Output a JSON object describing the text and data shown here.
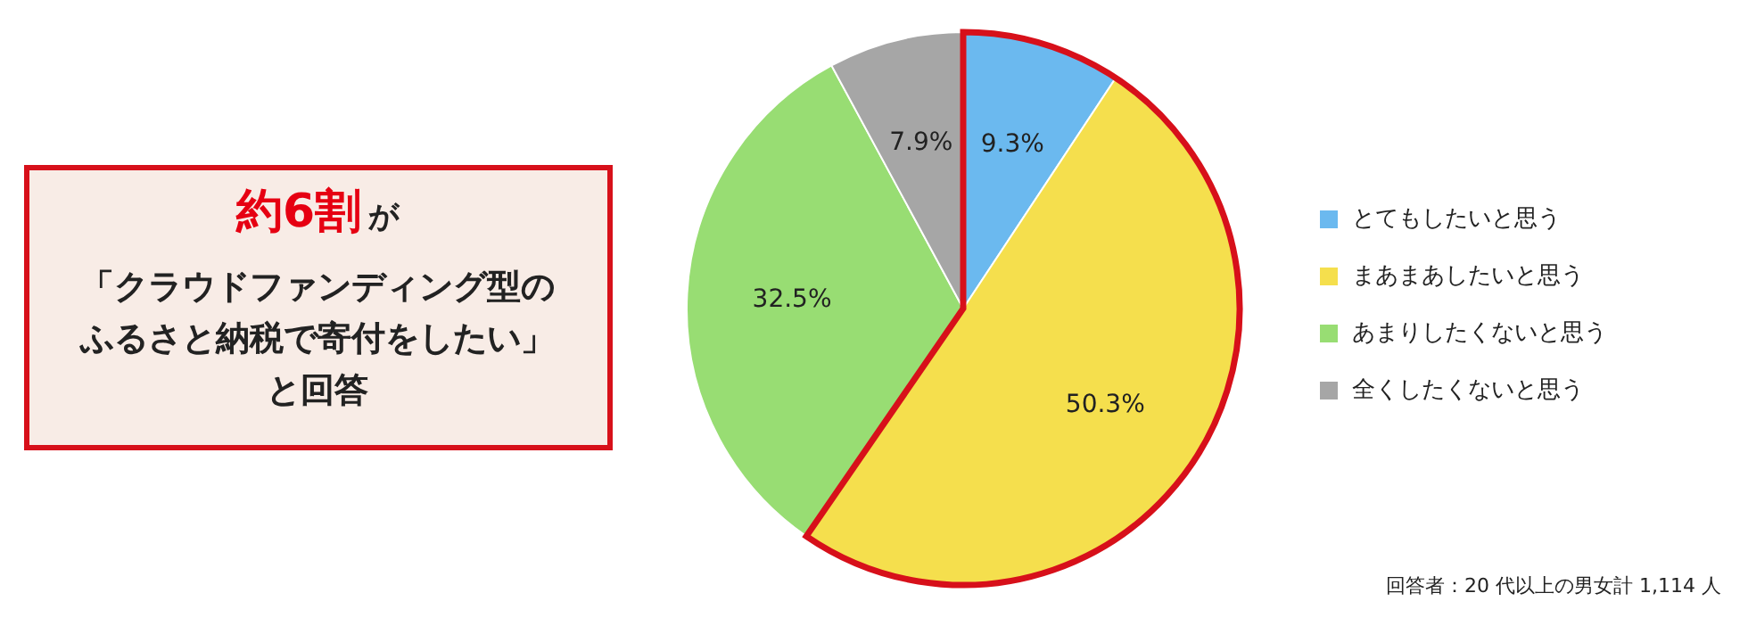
{
  "chart_data": {
    "type": "pie",
    "categories": [
      "とてもしたいと思う",
      "まあまあしたいと思う",
      "あまりしたくないと思う",
      "全くしたくないと思う"
    ],
    "values": [
      9.3,
      50.3,
      32.5,
      7.9
    ],
    "colors": [
      "#6bb9ef",
      "#f5df4d",
      "#98dd73",
      "#a6a6a6"
    ],
    "value_labels": [
      "9.3%",
      "50.3%",
      "32.5%",
      "7.9%"
    ],
    "legend": "right",
    "annotations": [
      "約6割",
      "が",
      "「クラウドファンディング型の",
      "ふるさと納税で寄付をしたい」",
      "と回答",
      "回答者：20 代以上の男女計 1,114 人"
    ]
  }
}
